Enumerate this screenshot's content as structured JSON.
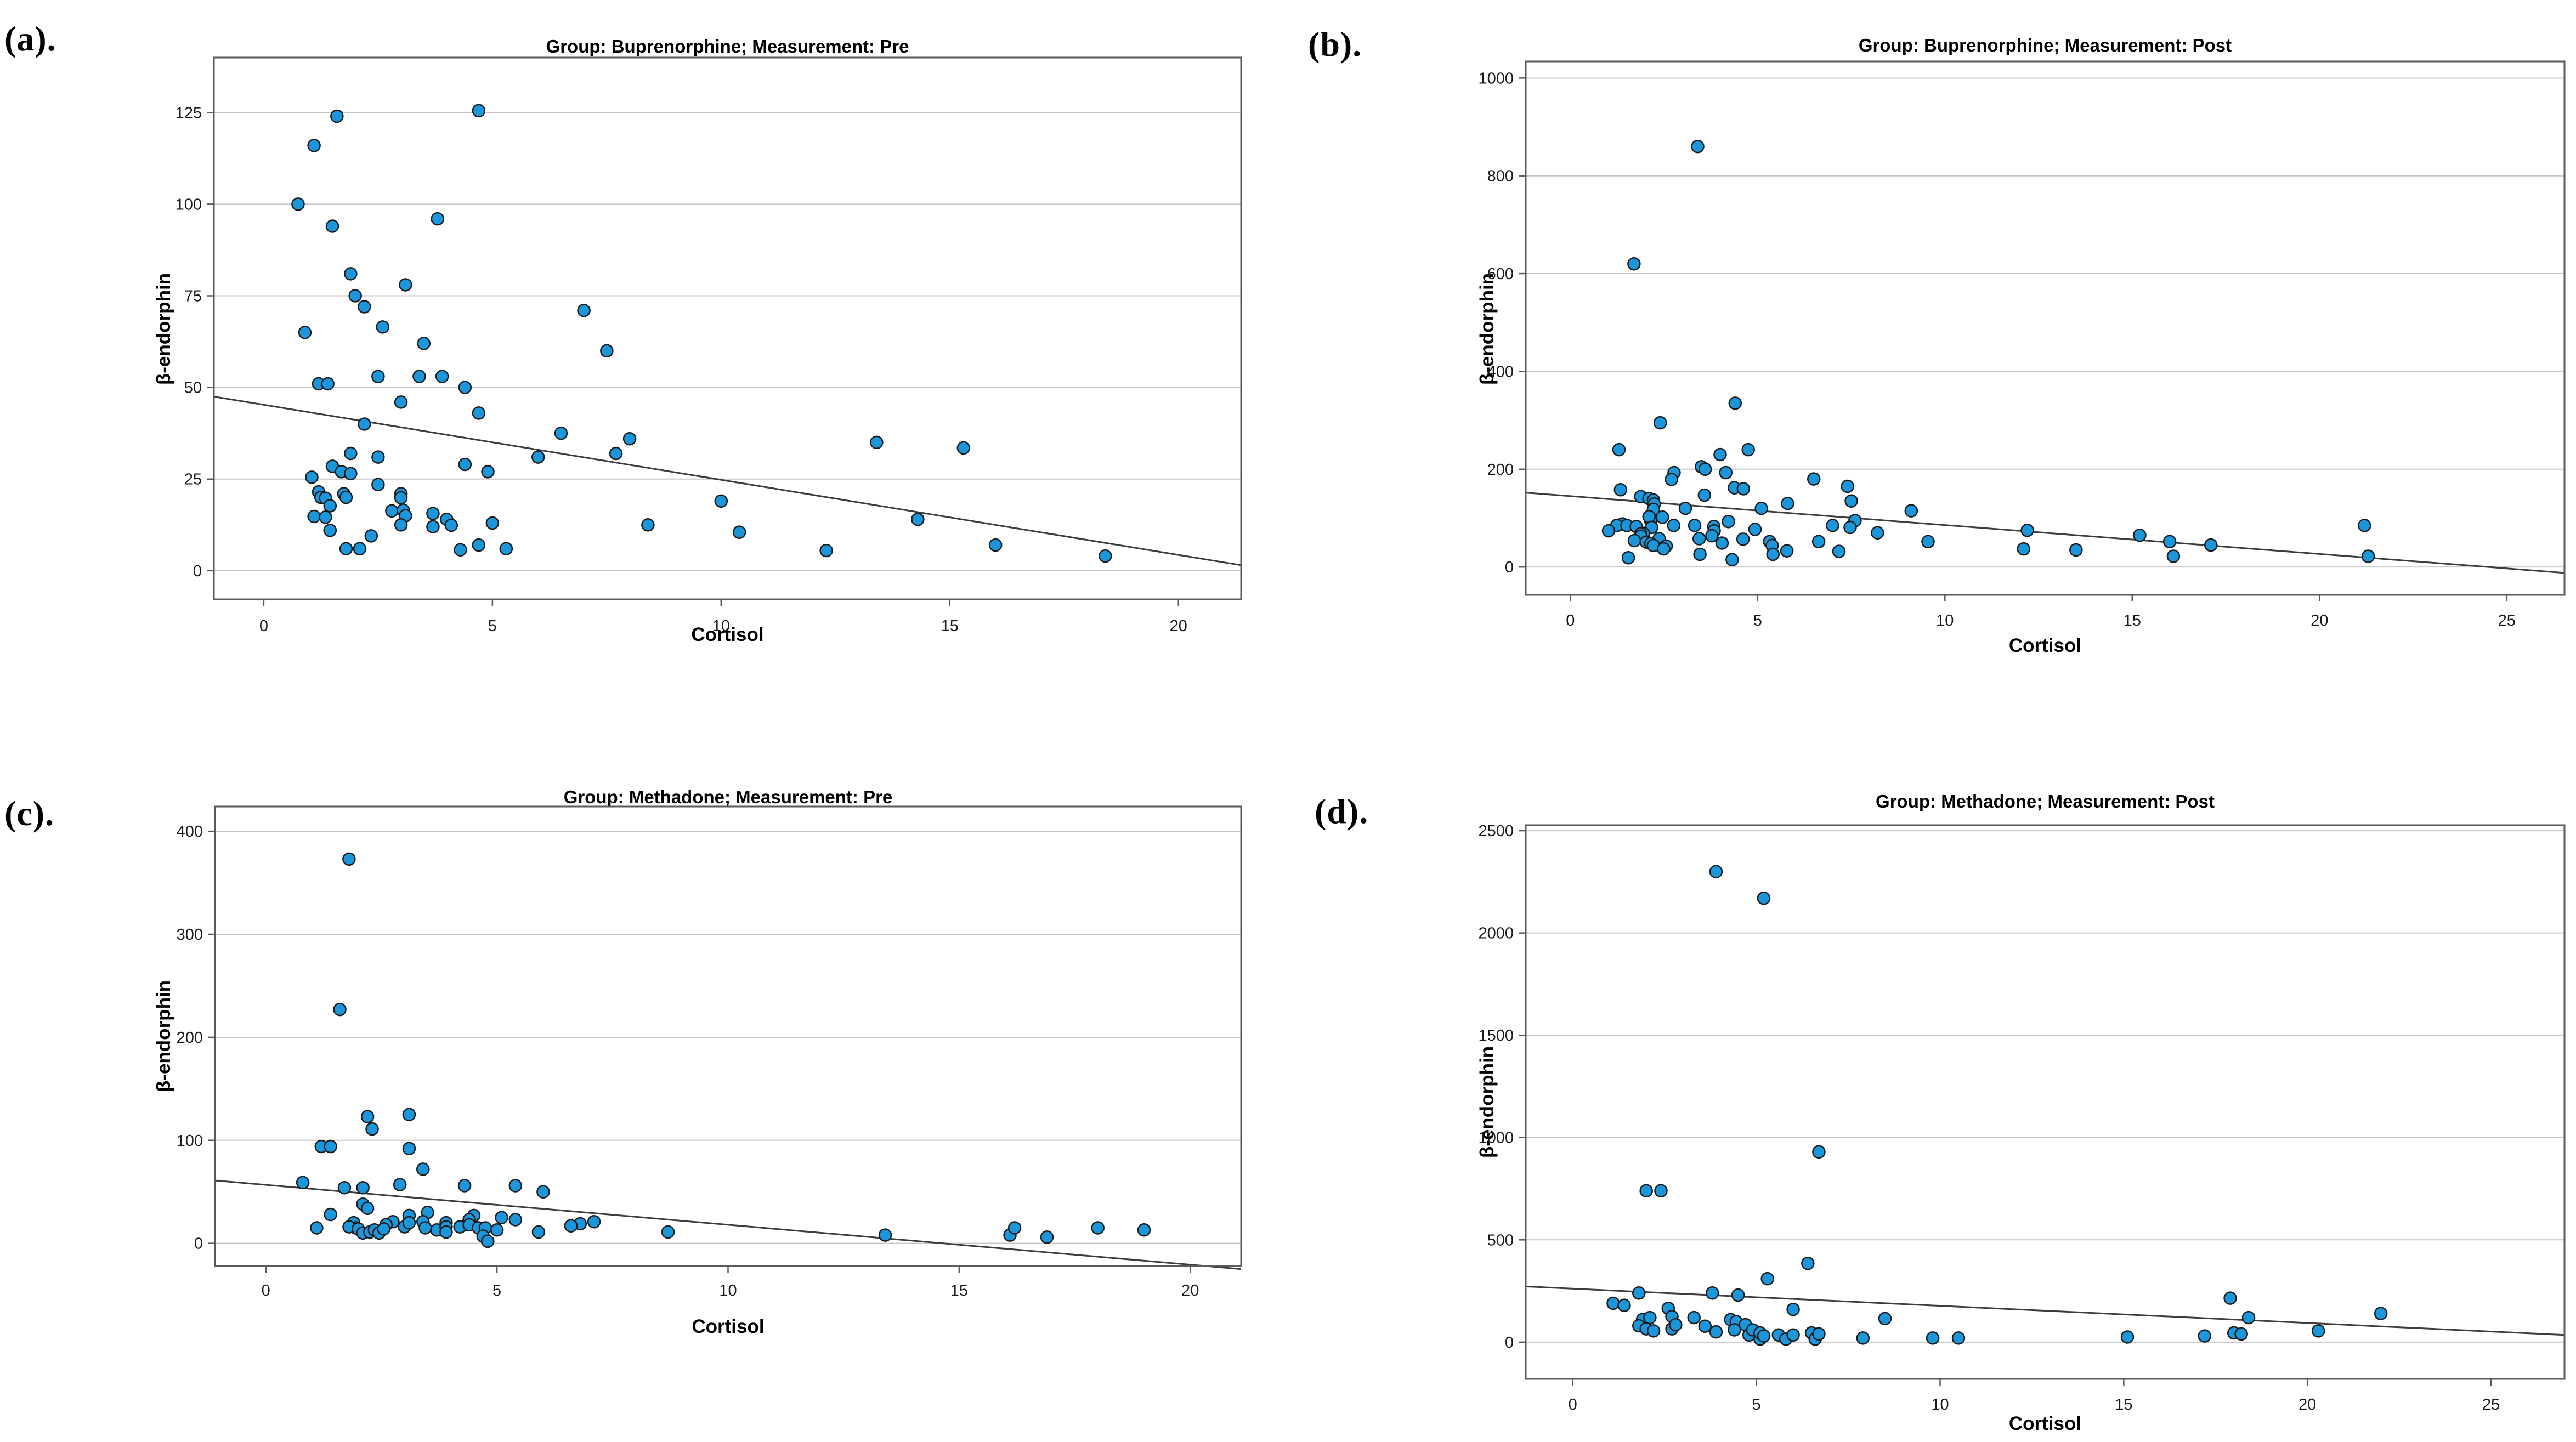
{
  "colors": {
    "marker_fill": "#1B96DB",
    "marker_stroke": "#1A1A1A",
    "grid": "#C6C6C6",
    "frame": "#5A5A5A",
    "trend": "#3C3C3C",
    "background": "#FFFFFF"
  },
  "chart_data": [
    {
      "type": "scatter",
      "tag": "(a).",
      "title": "Group: Buprenorphine; Measurement: Pre",
      "xlabel": "Cortisol",
      "ylabel": "β-endorphin",
      "xlim": [
        -1.09,
        21.37
      ],
      "ylim": [
        -7.8,
        140
      ],
      "xticks": [
        0,
        5,
        10,
        15,
        20
      ],
      "yticks": [
        0,
        25,
        50,
        75,
        100,
        125
      ],
      "grid": "horizontal",
      "trend": {
        "x1": -1.09,
        "y1": 47.5,
        "x2": 21.37,
        "y2": 1.5
      },
      "points": [
        [
          0.75,
          100
        ],
        [
          1.1,
          116
        ],
        [
          1.6,
          124
        ],
        [
          4.7,
          125.5
        ],
        [
          1.5,
          94
        ],
        [
          3.8,
          96
        ],
        [
          1.9,
          81
        ],
        [
          3.1,
          78
        ],
        [
          2.0,
          75
        ],
        [
          2.2,
          72
        ],
        [
          2.6,
          66.5
        ],
        [
          0.9,
          65
        ],
        [
          3.5,
          62
        ],
        [
          7.0,
          71
        ],
        [
          7.5,
          60
        ],
        [
          1.2,
          51
        ],
        [
          1.4,
          51
        ],
        [
          2.5,
          53
        ],
        [
          3.4,
          53
        ],
        [
          3.9,
          53
        ],
        [
          4.4,
          50
        ],
        [
          3.0,
          46
        ],
        [
          4.7,
          43
        ],
        [
          2.2,
          40
        ],
        [
          6.5,
          37.5
        ],
        [
          8.0,
          36
        ],
        [
          13.4,
          35
        ],
        [
          15.3,
          33.5
        ],
        [
          7.7,
          32
        ],
        [
          6.0,
          31
        ],
        [
          4.4,
          29
        ],
        [
          4.9,
          27
        ],
        [
          1.9,
          32
        ],
        [
          2.5,
          31
        ],
        [
          1.5,
          28.5
        ],
        [
          1.7,
          27
        ],
        [
          1.9,
          26.5
        ],
        [
          1.05,
          25.5
        ],
        [
          2.5,
          23.5
        ],
        [
          1.2,
          21.5
        ],
        [
          1.25,
          20
        ],
        [
          1.35,
          19.8
        ],
        [
          1.45,
          17.7
        ],
        [
          1.75,
          21
        ],
        [
          1.8,
          20
        ],
        [
          3.0,
          21
        ],
        [
          3.0,
          19.9
        ],
        [
          2.8,
          16.3
        ],
        [
          3.05,
          16.5
        ],
        [
          3.1,
          15
        ],
        [
          3.0,
          12.5
        ],
        [
          3.7,
          15.6
        ],
        [
          3.7,
          12
        ],
        [
          4.0,
          14
        ],
        [
          4.1,
          12.4
        ],
        [
          1.1,
          14.8
        ],
        [
          1.35,
          14.6
        ],
        [
          1.45,
          11
        ],
        [
          2.35,
          9.5
        ],
        [
          1.8,
          6
        ],
        [
          2.1,
          6
        ],
        [
          4.3,
          5.7
        ],
        [
          4.7,
          7
        ],
        [
          5.0,
          13
        ],
        [
          5.3,
          6
        ],
        [
          8.4,
          12.5
        ],
        [
          10.0,
          19
        ],
        [
          10.4,
          10.5
        ],
        [
          12.3,
          5.5
        ],
        [
          14.3,
          14
        ],
        [
          16.0,
          7
        ],
        [
          18.4,
          4
        ]
      ]
    },
    {
      "type": "scatter",
      "tag": "(b).",
      "title": "Group: Buprenorphine; Measurement: Post",
      "xlabel": "Cortisol",
      "ylabel": "β-endorphin",
      "xlim": [
        -1.19,
        26.54
      ],
      "ylim": [
        -57,
        1034
      ],
      "xticks": [
        0,
        5,
        10,
        15,
        20,
        25
      ],
      "yticks": [
        0,
        200,
        400,
        600,
        800,
        1000
      ],
      "grid": "horizontal",
      "trend": {
        "x1": -1.19,
        "y1": 152,
        "x2": 26.54,
        "y2": -12
      },
      "points": [
        [
          3.4,
          860
        ],
        [
          1.7,
          620
        ],
        [
          4.4,
          335
        ],
        [
          2.4,
          295
        ],
        [
          4.75,
          240
        ],
        [
          1.3,
          240
        ],
        [
          4.0,
          230
        ],
        [
          3.5,
          205
        ],
        [
          3.6,
          200
        ],
        [
          4.15,
          193
        ],
        [
          2.77,
          193
        ],
        [
          2.7,
          179
        ],
        [
          6.5,
          180
        ],
        [
          7.4,
          165
        ],
        [
          4.38,
          162
        ],
        [
          4.62,
          160
        ],
        [
          1.34,
          158
        ],
        [
          3.58,
          147
        ],
        [
          1.88,
          144
        ],
        [
          2.1,
          140
        ],
        [
          7.5,
          135
        ],
        [
          2.22,
          137
        ],
        [
          5.8,
          130
        ],
        [
          2.24,
          129
        ],
        [
          5.1,
          120
        ],
        [
          3.07,
          120
        ],
        [
          2.22,
          118
        ],
        [
          9.1,
          115
        ],
        [
          2.15,
          94
        ],
        [
          2.1,
          103
        ],
        [
          2.46,
          102
        ],
        [
          7.6,
          95
        ],
        [
          4.22,
          93
        ],
        [
          1.39,
          88
        ],
        [
          1.24,
          85
        ],
        [
          1.51,
          85
        ],
        [
          1.76,
          83
        ],
        [
          2.17,
          81
        ],
        [
          3.32,
          85
        ],
        [
          3.83,
          83
        ],
        [
          2.76,
          85
        ],
        [
          7.0,
          85
        ],
        [
          7.47,
          81
        ],
        [
          4.93,
          77
        ],
        [
          12.2,
          75
        ],
        [
          1.02,
          74
        ],
        [
          3.84,
          74
        ],
        [
          8.2,
          70
        ],
        [
          1.95,
          69
        ],
        [
          1.88,
          68
        ],
        [
          3.78,
          64
        ],
        [
          1.88,
          63
        ],
        [
          15.2,
          65
        ],
        [
          4.61,
          57
        ],
        [
          2.37,
          58
        ],
        [
          3.44,
          58
        ],
        [
          1.71,
          54
        ],
        [
          2.03,
          51
        ],
        [
          5.32,
          52
        ],
        [
          6.63,
          52
        ],
        [
          9.55,
          52
        ],
        [
          16.0,
          52
        ],
        [
          2.15,
          48
        ],
        [
          2.22,
          44
        ],
        [
          5.39,
          44
        ],
        [
          17.1,
          45
        ],
        [
          2.56,
          43
        ],
        [
          12.1,
          37
        ],
        [
          13.5,
          35
        ],
        [
          5.78,
          33
        ],
        [
          7.17,
          32
        ],
        [
          3.46,
          26
        ],
        [
          5.41,
          26
        ],
        [
          1.55,
          19
        ],
        [
          4.32,
          15
        ],
        [
          16.1,
          22
        ],
        [
          21.2,
          85
        ],
        [
          21.3,
          22
        ],
        [
          2.49,
          37
        ],
        [
          4.05,
          49
        ]
      ]
    },
    {
      "type": "scatter",
      "tag": "(c).",
      "title": "Group: Methadone; Measurement: Pre",
      "xlabel": "Cortisol",
      "ylabel": "β-endorphin",
      "xlim": [
        -1.1,
        21.1
      ],
      "ylim": [
        -22,
        424
      ],
      "xticks": [
        0,
        5,
        10,
        15,
        20
      ],
      "yticks": [
        0,
        100,
        200,
        300,
        400
      ],
      "grid": "horizontal",
      "trend": {
        "x1": -1.1,
        "y1": 61,
        "x2": 21.1,
        "y2": -25
      },
      "points": [
        [
          1.8,
          373
        ],
        [
          1.6,
          227
        ],
        [
          2.2,
          123
        ],
        [
          2.3,
          111
        ],
        [
          3.1,
          125
        ],
        [
          1.2,
          94
        ],
        [
          1.4,
          94
        ],
        [
          3.1,
          92
        ],
        [
          3.4,
          72
        ],
        [
          0.8,
          59
        ],
        [
          1.7,
          54
        ],
        [
          2.1,
          54
        ],
        [
          2.9,
          57
        ],
        [
          4.3,
          56
        ],
        [
          5.4,
          56
        ],
        [
          6.0,
          50
        ],
        [
          2.1,
          38
        ],
        [
          2.2,
          34
        ],
        [
          3.5,
          30
        ],
        [
          1.4,
          28
        ],
        [
          3.1,
          27
        ],
        [
          4.5,
          27
        ],
        [
          4.4,
          23
        ],
        [
          5.1,
          25
        ],
        [
          5.4,
          23
        ],
        [
          2.75,
          21
        ],
        [
          3.4,
          21
        ],
        [
          3.9,
          20
        ],
        [
          1.9,
          20
        ],
        [
          7.1,
          21
        ],
        [
          6.8,
          19
        ],
        [
          6.6,
          17
        ],
        [
          1.95,
          15
        ],
        [
          2.6,
          18
        ],
        [
          3.0,
          16
        ],
        [
          3.1,
          20
        ],
        [
          3.45,
          15
        ],
        [
          3.7,
          13
        ],
        [
          3.9,
          16
        ],
        [
          3.9,
          11
        ],
        [
          4.2,
          16
        ],
        [
          4.4,
          18
        ],
        [
          4.6,
          15
        ],
        [
          4.75,
          15
        ],
        [
          5.0,
          13
        ],
        [
          1.1,
          15
        ],
        [
          1.8,
          16
        ],
        [
          2.0,
          14
        ],
        [
          2.1,
          10
        ],
        [
          2.25,
          11
        ],
        [
          2.35,
          13
        ],
        [
          2.45,
          10
        ],
        [
          2.55,
          14
        ],
        [
          5.9,
          11
        ],
        [
          8.7,
          11
        ],
        [
          4.7,
          7
        ],
        [
          4.8,
          2
        ],
        [
          13.4,
          8
        ],
        [
          16.1,
          8
        ],
        [
          16.2,
          15
        ],
        [
          16.9,
          6
        ],
        [
          18.0,
          15
        ],
        [
          19.0,
          13
        ]
      ]
    },
    {
      "type": "scatter",
      "tag": "(d).",
      "title": "Group: Methadone; Measurement: Post",
      "xlabel": "Cortisol",
      "ylabel": "β-endorphin",
      "xlim": [
        -1.28,
        27.0
      ],
      "ylim": [
        -180,
        2527
      ],
      "xticks": [
        0,
        5,
        10,
        15,
        20,
        25
      ],
      "yticks": [
        0,
        500,
        1000,
        1500,
        2000,
        2500
      ],
      "grid": "horizontal",
      "trend": {
        "x1": -1.28,
        "y1": 272,
        "x2": 27.0,
        "y2": 35
      },
      "points": [
        [
          3.9,
          2300
        ],
        [
          5.2,
          2170
        ],
        [
          6.7,
          930
        ],
        [
          2.0,
          740
        ],
        [
          2.4,
          740
        ],
        [
          6.4,
          385
        ],
        [
          5.3,
          310
        ],
        [
          1.8,
          240
        ],
        [
          3.8,
          240
        ],
        [
          4.5,
          230
        ],
        [
          1.1,
          190
        ],
        [
          1.4,
          180
        ],
        [
          2.6,
          165
        ],
        [
          2.7,
          125
        ],
        [
          1.9,
          110
        ],
        [
          2.1,
          120
        ],
        [
          1.8,
          80
        ],
        [
          2.0,
          65
        ],
        [
          2.2,
          55
        ],
        [
          2.7,
          65
        ],
        [
          2.8,
          85
        ],
        [
          3.3,
          120
        ],
        [
          3.6,
          78
        ],
        [
          3.9,
          50
        ],
        [
          4.3,
          110
        ],
        [
          4.45,
          100
        ],
        [
          4.4,
          60
        ],
        [
          4.7,
          85
        ],
        [
          4.8,
          35
        ],
        [
          4.9,
          60
        ],
        [
          5.1,
          15
        ],
        [
          5.1,
          45
        ],
        [
          5.2,
          30
        ],
        [
          5.6,
          35
        ],
        [
          5.8,
          15
        ],
        [
          6.0,
          35
        ],
        [
          6.0,
          160
        ],
        [
          6.5,
          45
        ],
        [
          6.6,
          15
        ],
        [
          6.7,
          40
        ],
        [
          7.9,
          20
        ],
        [
          8.5,
          115
        ],
        [
          9.8,
          20
        ],
        [
          10.5,
          20
        ],
        [
          15.1,
          25
        ],
        [
          17.2,
          30
        ],
        [
          17.9,
          215
        ],
        [
          18.0,
          45
        ],
        [
          18.2,
          40
        ],
        [
          18.4,
          120
        ],
        [
          20.3,
          55
        ],
        [
          22.0,
          140
        ]
      ]
    }
  ]
}
